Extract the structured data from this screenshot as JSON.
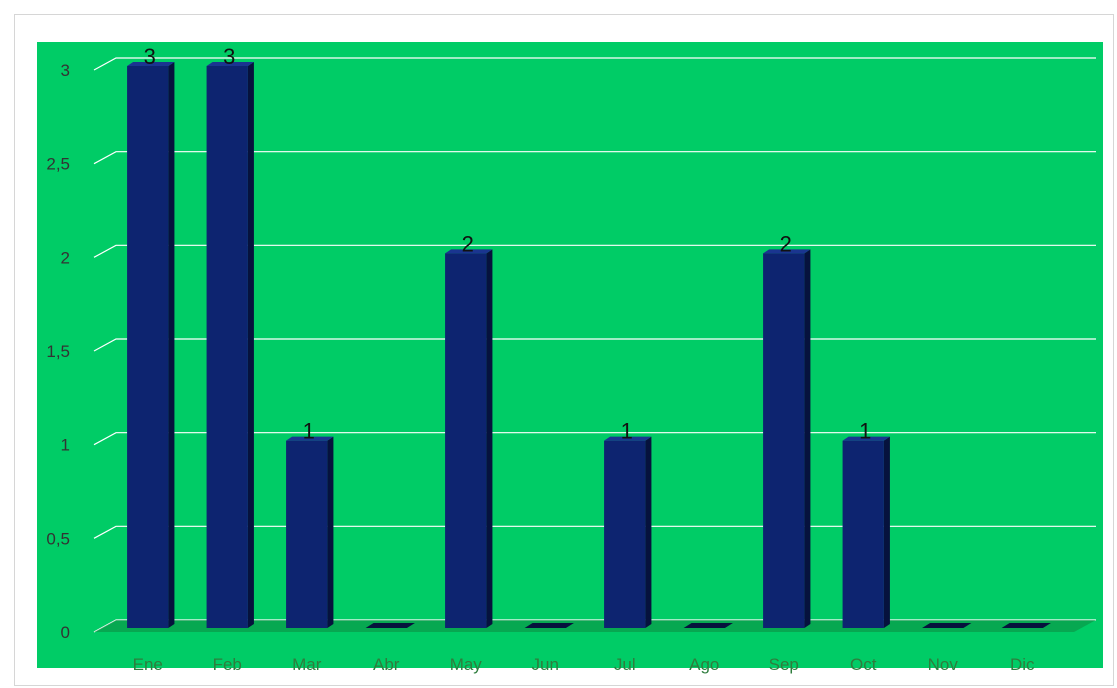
{
  "chart_data": {
    "type": "bar",
    "categories": [
      "Ene",
      "Feb",
      "Mar",
      "Abr",
      "May",
      "Jun",
      "Jul",
      "Ago",
      "Sep",
      "Oct",
      "Nov",
      "Dic"
    ],
    "values": [
      3,
      3,
      1,
      0,
      2,
      0,
      1,
      0,
      2,
      1,
      0,
      0
    ],
    "data_labels": [
      "3",
      "3",
      "1",
      "",
      "2",
      "",
      "1",
      "",
      "2",
      "1",
      "",
      ""
    ],
    "y_ticks": [
      "0",
      "0,5",
      "1",
      "1,5",
      "2",
      "2,5",
      "3"
    ],
    "ylim": [
      0,
      3
    ],
    "grid": true,
    "legend": "none",
    "title": "",
    "xlabel": "",
    "ylabel": "",
    "colors": {
      "plot_background": "#00cc66",
      "bar_front": "#0d2470",
      "bar_side": "#06123d",
      "bar_top": "#1a3590",
      "gridline": "#ffffff",
      "floor_shadow": "#0c8a40"
    }
  }
}
